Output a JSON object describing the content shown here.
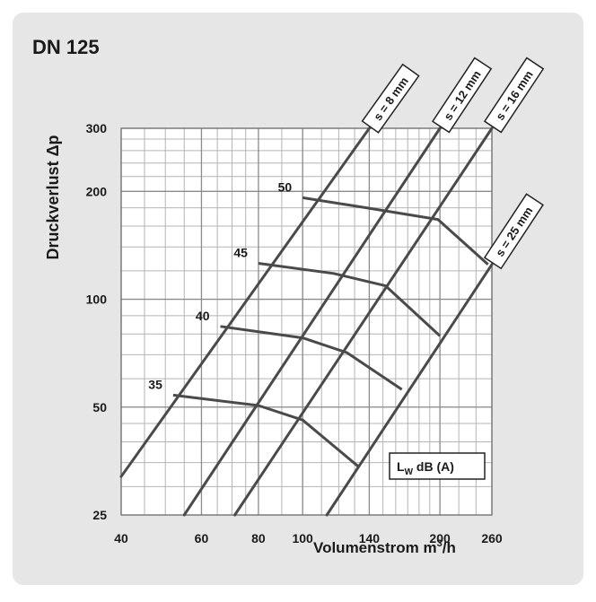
{
  "chart_data": {
    "type": "line",
    "title": "DN 125",
    "xlabel": "Volumenstrom m³/h",
    "xlabel_main": "Volumenstrom m",
    "xlabel_sup": "3",
    "xlabel_tail": "/h",
    "ylabel": "Druckverlust Δp",
    "x_scale": "log",
    "y_scale": "log",
    "xlim": [
      40,
      260
    ],
    "ylim": [
      25,
      300
    ],
    "grid": true,
    "x_ticks": [
      40,
      60,
      80,
      100,
      140,
      200,
      260
    ],
    "x_tick_labels": [
      "40",
      "60",
      "80",
      "100",
      "140",
      "200",
      "260"
    ],
    "y_ticks": [
      25,
      50,
      100,
      200,
      300
    ],
    "y_tick_labels": [
      "25",
      "50",
      "100",
      "200",
      "300"
    ],
    "legend_main": "L",
    "legend_sub": "W",
    "legend_tail": " dB (A)",
    "series": [
      {
        "name": "s = 8 mm",
        "x": [
          40,
          140
        ],
        "y": [
          32,
          300
        ]
      },
      {
        "name": "s = 12 mm",
        "x": [
          55,
          200
        ],
        "y": [
          25,
          300
        ]
      },
      {
        "name": "s = 16 mm",
        "x": [
          71,
          260
        ],
        "y": [
          25,
          300
        ]
      },
      {
        "name": "s = 25 mm",
        "x": [
          113,
          260
        ],
        "y": [
          25,
          125
        ]
      }
    ],
    "sound_levels": [
      {
        "label": "35",
        "x": [
          52,
          80,
          100,
          133
        ],
        "y": [
          54,
          50.5,
          46,
          34
        ]
      },
      {
        "label": "40",
        "x": [
          66,
          100,
          125,
          165
        ],
        "y": [
          84,
          78,
          71,
          56
        ]
      },
      {
        "label": "45",
        "x": [
          80,
          117,
          152,
          200
        ],
        "y": [
          126,
          118,
          109,
          79
        ]
      },
      {
        "label": "50",
        "x": [
          100,
          138,
          198,
          255
        ],
        "y": [
          192,
          180,
          167,
          125
        ]
      }
    ]
  }
}
